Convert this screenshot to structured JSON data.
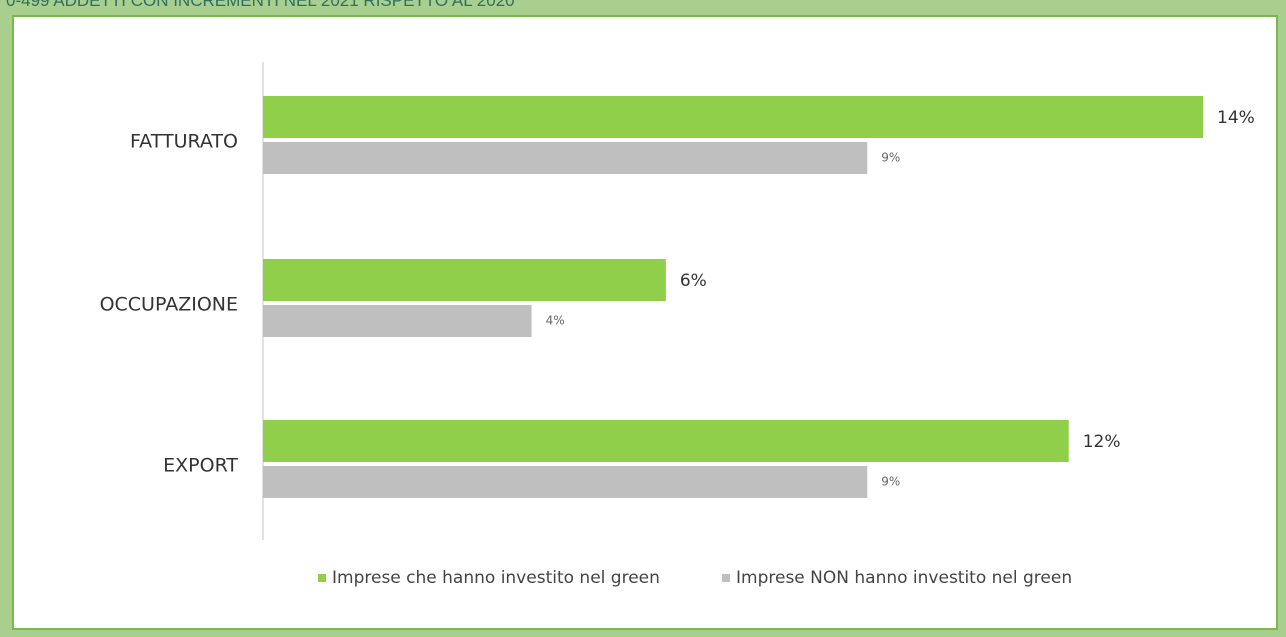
{
  "header": {
    "title": "0-499 ADDETTI CON INCREMENTI NEL 2021 RISPETTO AL 2020"
  },
  "colors": {
    "background": "#a9cf8f",
    "panel_border": "#78b84d",
    "green_series": "#8fcf4a",
    "gray_series": "#bfbfbf",
    "axis": "#d9d9d9"
  },
  "chart_data": {
    "type": "bar",
    "orientation": "horizontal",
    "categories": [
      "FATTURATO",
      "OCCUPAZIONE",
      "EXPORT"
    ],
    "series": [
      {
        "name": "Imprese che hanno investito nel green",
        "values": [
          14,
          6,
          12
        ],
        "labels": [
          "14%",
          "6%",
          "12%"
        ]
      },
      {
        "name": "Imprese NON hanno investito nel green",
        "values": [
          9,
          4,
          9
        ],
        "labels": [
          "9%",
          "4%",
          "9%"
        ]
      }
    ],
    "xlim": [
      0,
      14
    ],
    "grid": false,
    "legend_position": "bottom"
  }
}
